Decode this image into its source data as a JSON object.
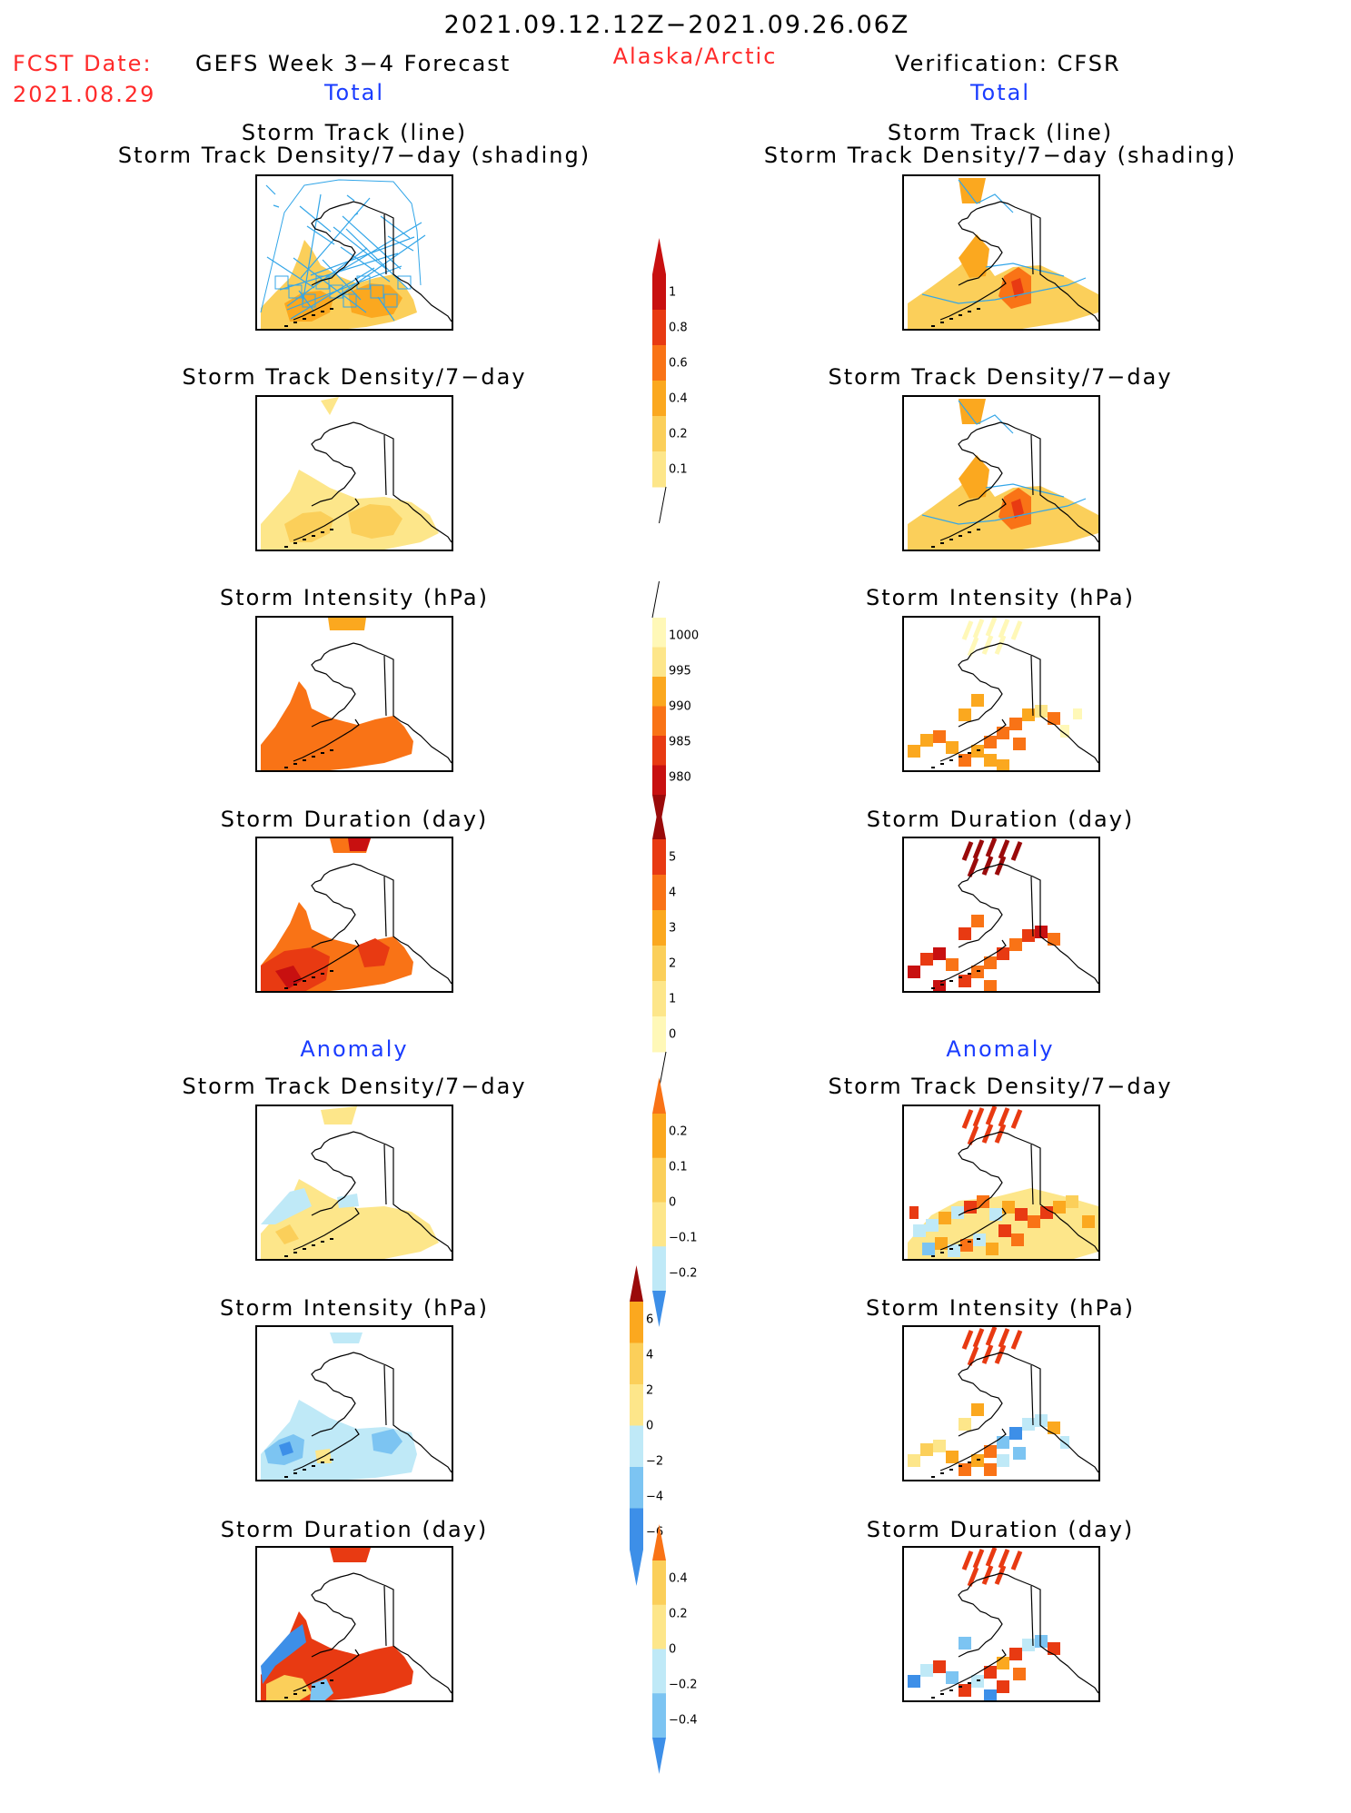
{
  "header": {
    "period": "2021.09.12.12Z−2021.09.26.06Z",
    "fcst_label": "FCST Date:",
    "fcst_date": "2021.08.29",
    "model": "GEFS Week 3−4 Forecast",
    "region": "Alaska/Arctic",
    "verification": "Verification: CFSR",
    "total_left": "Total",
    "total_right": "Total",
    "anomaly_left": "Anomaly",
    "anomaly_right": "Anomaly"
  },
  "titles": {
    "track_line": "Storm Track (line)",
    "track_shading": "Storm Track Density/7−day (shading)",
    "density": "Storm Track Density/7−day",
    "intensity": "Storm Intensity (hPa)",
    "duration": "Storm Duration (day)"
  },
  "colors": {
    "cb_yellow1": "#fff8b8",
    "cb_yellow2": "#fde68a",
    "cb_yellow3": "#fbcf5a",
    "cb_orange1": "#fba81f",
    "cb_orange2": "#f97316",
    "cb_red1": "#e83a12",
    "cb_red2": "#c81010",
    "cb_darkred": "#9a0a0a",
    "cb_lightblue": "#bfe9f7",
    "cb_blue1": "#7cc4f2",
    "cb_blue2": "#3d8fe8",
    "track_line": "#33a6e8"
  },
  "chart_data": [
    {
      "type": "heatmap",
      "name": "colorbar-density",
      "levels": [
        "0.1",
        "0.2",
        "0.4",
        "0.6",
        "0.8",
        "1"
      ]
    },
    {
      "type": "heatmap",
      "name": "colorbar-intensity",
      "levels": [
        "1000",
        "995",
        "990",
        "985",
        "980"
      ]
    },
    {
      "type": "heatmap",
      "name": "colorbar-duration",
      "levels": [
        "0",
        "1",
        "2",
        "3",
        "4",
        "5"
      ]
    },
    {
      "type": "heatmap",
      "name": "colorbar-density-anomaly",
      "levels": [
        "−0.2",
        "−0.1",
        "0",
        "0.1",
        "0.2"
      ]
    },
    {
      "type": "heatmap",
      "name": "colorbar-intensity-anomaly",
      "levels": [
        "−6",
        "−4",
        "−2",
        "0",
        "2",
        "4",
        "6"
      ]
    },
    {
      "type": "heatmap",
      "name": "colorbar-duration-anomaly",
      "levels": [
        "−0.4",
        "−0.2",
        "0",
        "0.2",
        "0.4"
      ]
    }
  ]
}
